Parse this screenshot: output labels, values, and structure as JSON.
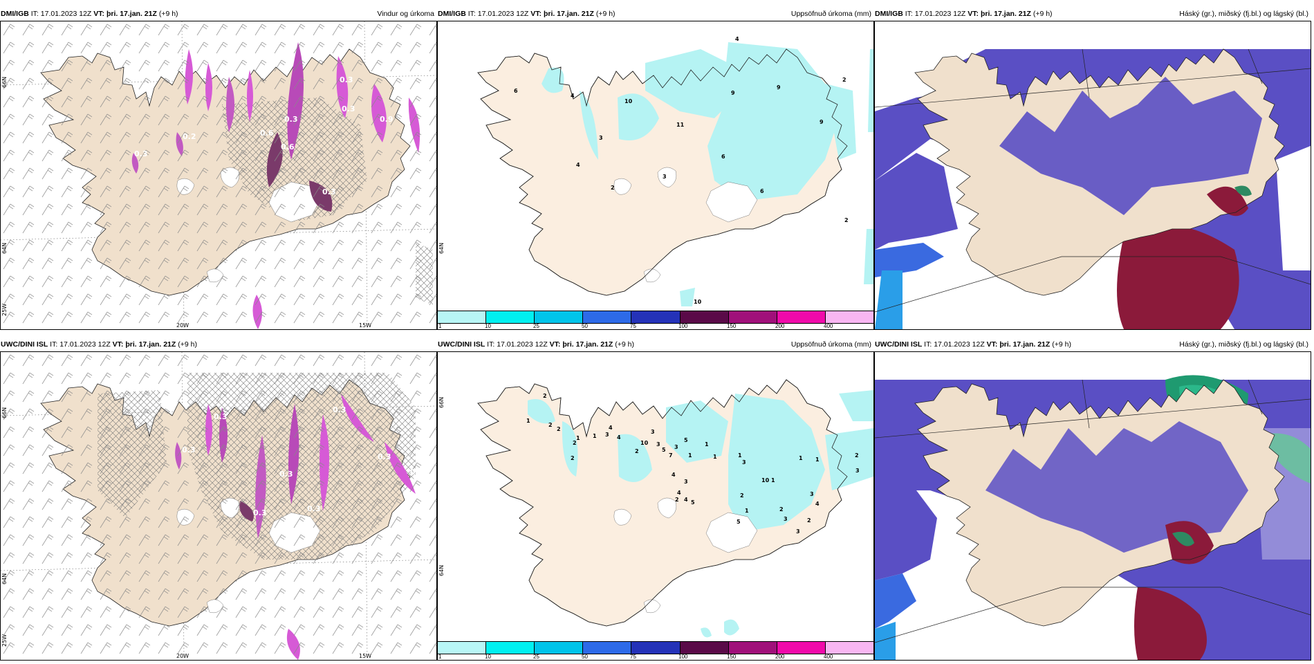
{
  "colors": {
    "land": "#f0e0cc",
    "land_light": "#fbeee0",
    "precip_cyan": "#b5f3f3",
    "wind_magenta": "#d65ad6",
    "wind_dark": "#7a3a6a",
    "cloud_high": "#5a4fc4",
    "cloud_mid": "#3a6ae0",
    "cloud_low_red": "#8b1a3a",
    "cloud_green": "#1f9a70"
  },
  "colorbar": {
    "ticks": [
      "1",
      "10",
      "25",
      "50",
      "75",
      "100",
      "150",
      "200",
      "400"
    ],
    "colors": [
      "#b8f6f6",
      "#00f0f0",
      "#00c4ea",
      "#2d6ae8",
      "#2432b8",
      "#5a0a48",
      "#a0107a",
      "#f00aaa",
      "#f8b6f2"
    ]
  },
  "map_coords": {
    "lat66": "66N",
    "lat64": "64N",
    "lon25": "25W",
    "lon20": "20W",
    "lon15": "15W"
  },
  "panels": [
    {
      "id": "dmi-wind",
      "model": "DMI/IGB",
      "it_label": "IT:",
      "it_value": "17.01.2023 12Z",
      "vt_label": "VT:",
      "vt_value": "þri. 17.jan. 21Z",
      "lead": "(+9 h)",
      "title": "Vindur og úrkoma",
      "labels": [
        "0.3",
        "0.6",
        "0.3",
        "0.3",
        "0.2",
        "0.9",
        "0.3",
        "0.6",
        "0.3"
      ]
    },
    {
      "id": "dmi-precip",
      "model": "DMI/IGB",
      "it_label": "IT:",
      "it_value": "17.01.2023 12Z",
      "vt_label": "VT:",
      "vt_value": "þri. 17.jan. 21Z",
      "lead": "(+9 h)",
      "title": "Uppsöfnuð úrkoma (mm)",
      "labels": [
        "4",
        "2",
        "6",
        "4",
        "10",
        "11",
        "9",
        "9",
        "3",
        "4",
        "6",
        "9",
        "3",
        "6",
        "2",
        "2",
        "10"
      ]
    },
    {
      "id": "dmi-cloud",
      "model": "DMI/IGB",
      "it_label": "IT:",
      "it_value": "17.01.2023 12Z",
      "vt_label": "VT:",
      "vt_value": "þri. 17.jan. 21Z",
      "lead": "(+9 h)",
      "title": "Háský (gr.), miðský (fj.bl.) og lágský (bl.)",
      "labels": []
    },
    {
      "id": "uwc-wind",
      "model": "UWC/DINI ISL",
      "it_label": "IT:",
      "it_value": "17.01.2023 12Z",
      "vt_label": "VT:",
      "vt_value": "þri. 17.jan. 21Z",
      "lead": "(+9 h)",
      "title": "",
      "labels": [
        "0.3",
        "0.3",
        "0.3",
        "0.3",
        "0.3",
        "0.3",
        "0.3",
        "0.3"
      ]
    },
    {
      "id": "uwc-precip",
      "model": "UWC/DINI ISL",
      "it_label": "IT:",
      "it_value": "17.01.2023 12Z",
      "vt_label": "VT:",
      "vt_value": "þri. 17.jan. 21Z",
      "lead": "(+9 h)",
      "title": "Uppsöfnuð úrkoma (mm)",
      "labels": [
        "2",
        "1",
        "2",
        "2",
        "1",
        "1",
        "2",
        "2",
        "4",
        "3",
        "4",
        "10",
        "2",
        "3",
        "3",
        "5",
        "7",
        "3",
        "5",
        "1",
        "4",
        "3",
        "4",
        "2",
        "4",
        "5",
        "1",
        "1",
        "1",
        "3",
        "2",
        "1",
        "10",
        "1",
        "1",
        "1",
        "2",
        "3",
        "4",
        "2",
        "3",
        "3",
        "3",
        "5",
        "2"
      ]
    },
    {
      "id": "uwc-cloud",
      "model": "UWC/DINI ISL",
      "it_label": "IT:",
      "it_value": "17.01.2023 12Z",
      "vt_label": "VT:",
      "vt_value": "þri. 17.jan. 21Z",
      "lead": "(+9 h)",
      "title": "Háský (gr.), miðský (fj.bl.) og lágský (bl.)",
      "labels": []
    }
  ]
}
